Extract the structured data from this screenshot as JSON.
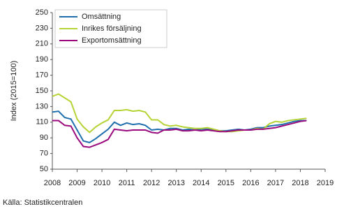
{
  "chart_data": {
    "type": "line",
    "ylabel": "Index (2015=100)",
    "source": "Källa: Statistikcentralen",
    "x": [
      2008,
      2008.25,
      2008.5,
      2008.75,
      2009,
      2009.25,
      2009.5,
      2009.75,
      2010,
      2010.25,
      2010.5,
      2010.75,
      2011,
      2011.25,
      2011.5,
      2011.75,
      2012,
      2012.25,
      2012.5,
      2012.75,
      2013,
      2013.25,
      2013.5,
      2013.75,
      2014,
      2014.25,
      2014.5,
      2014.75,
      2015,
      2015.25,
      2015.5,
      2015.75,
      2016,
      2016.25,
      2016.5,
      2016.75,
      2017,
      2017.25,
      2017.5,
      2017.75,
      2018,
      2018.25
    ],
    "series": [
      {
        "name": "Omsättning",
        "color": "#1f6fae",
        "values": [
          123,
          124,
          116,
          114,
          100,
          86,
          84,
          89,
          95,
          101,
          110,
          106,
          109,
          107,
          108,
          106,
          100,
          101,
          100,
          102,
          102,
          100,
          101,
          100,
          101,
          101,
          100,
          99,
          99,
          100,
          101,
          100,
          101,
          103,
          103,
          105,
          106,
          107,
          109,
          111,
          112,
          112
        ]
      },
      {
        "name": "Inrikes försäljning",
        "color": "#b5d334",
        "values": [
          143,
          146,
          141,
          136,
          114,
          104,
          97,
          104,
          109,
          113,
          125,
          125,
          126,
          124,
          125,
          123,
          113,
          113,
          107,
          105,
          106,
          104,
          103,
          102,
          102,
          103,
          101,
          99,
          98,
          98,
          99,
          100,
          100,
          102,
          101,
          108,
          111,
          110,
          112,
          113,
          114,
          115
        ]
      },
      {
        "name": "Exportomsättning",
        "color": "#9b0a7d",
        "values": [
          112,
          112,
          106,
          105,
          90,
          79,
          78,
          81,
          84,
          88,
          101,
          100,
          99,
          100,
          100,
          100,
          97,
          96,
          100,
          100,
          101,
          99,
          99,
          100,
          99,
          100,
          99,
          98,
          98,
          99,
          100,
          100,
          100,
          101,
          101,
          102,
          103,
          105,
          107,
          109,
          111,
          112
        ]
      }
    ],
    "xlim": [
      2008,
      2019
    ],
    "xticks": [
      2008,
      2009,
      2010,
      2011,
      2012,
      2013,
      2014,
      2015,
      2016,
      2017,
      2018,
      2019
    ],
    "ylim": [
      50,
      250
    ],
    "yticks": [
      50,
      70,
      90,
      110,
      130,
      150,
      170,
      190,
      210,
      230,
      250
    ],
    "grid": false,
    "legend": "top-left"
  }
}
